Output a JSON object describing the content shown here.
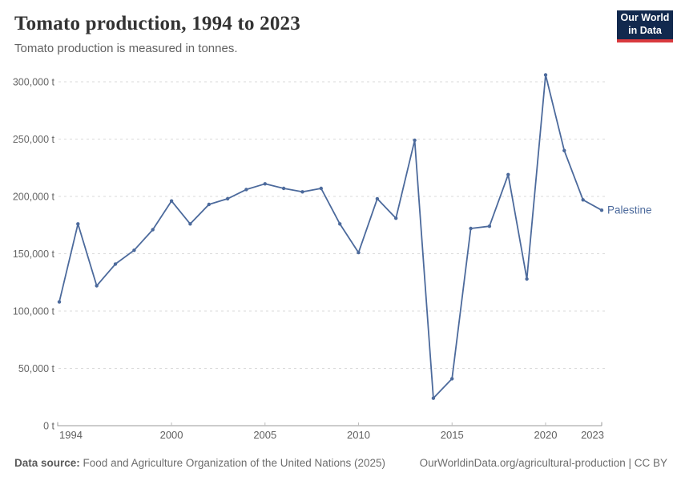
{
  "header": {
    "title": "Tomato production, 1994 to 2023",
    "subtitle": "Tomato production is measured in tonnes."
  },
  "logo": {
    "line1": "Our World",
    "line2": "in Data",
    "bg_color": "#12294e",
    "accent_color": "#d93a3e"
  },
  "chart_data": {
    "type": "line",
    "title": "Tomato production, 1994 to 2023",
    "unit": "tonnes",
    "grid": "horizontal-dashed",
    "legend_position": "right-of-last-point",
    "ylim": [
      0,
      300000
    ],
    "x": [
      1994,
      1995,
      1996,
      1997,
      1998,
      1999,
      2000,
      2001,
      2002,
      2003,
      2004,
      2005,
      2006,
      2007,
      2008,
      2009,
      2010,
      2011,
      2012,
      2013,
      2014,
      2015,
      2016,
      2017,
      2018,
      2019,
      2020,
      2021,
      2022,
      2023
    ],
    "series": [
      {
        "name": "Palestine",
        "color": "#4C6A9C",
        "values": [
          108000,
          176000,
          122000,
          141000,
          153000,
          171000,
          196000,
          176000,
          193000,
          198000,
          206000,
          211000,
          207000,
          204000,
          207000,
          176000,
          151000,
          198000,
          181000,
          249000,
          24000,
          41000,
          172000,
          174000,
          219000,
          128000,
          306000,
          240000,
          197000,
          188000
        ]
      }
    ],
    "y_ticks": [
      {
        "value": 0,
        "label": "0 t"
      },
      {
        "value": 50000,
        "label": "50,000 t"
      },
      {
        "value": 100000,
        "label": "100,000 t"
      },
      {
        "value": 150000,
        "label": "150,000 t"
      },
      {
        "value": 200000,
        "label": "200,000 t"
      },
      {
        "value": 250000,
        "label": "250,000 t"
      },
      {
        "value": 300000,
        "label": "300,000 t"
      }
    ],
    "x_ticks": [
      {
        "value": 1994,
        "label": "1994"
      },
      {
        "value": 2000,
        "label": "2000"
      },
      {
        "value": 2005,
        "label": "2005"
      },
      {
        "value": 2010,
        "label": "2010"
      },
      {
        "value": 2015,
        "label": "2015"
      },
      {
        "value": 2020,
        "label": "2020"
      },
      {
        "value": 2023,
        "label": "2023"
      }
    ]
  },
  "footer": {
    "source_label": "Data source:",
    "source_text": "Food and Agriculture Organization of the United Nations (2025)",
    "attribution": "OurWorldinData.org/agricultural-production | CC BY"
  }
}
